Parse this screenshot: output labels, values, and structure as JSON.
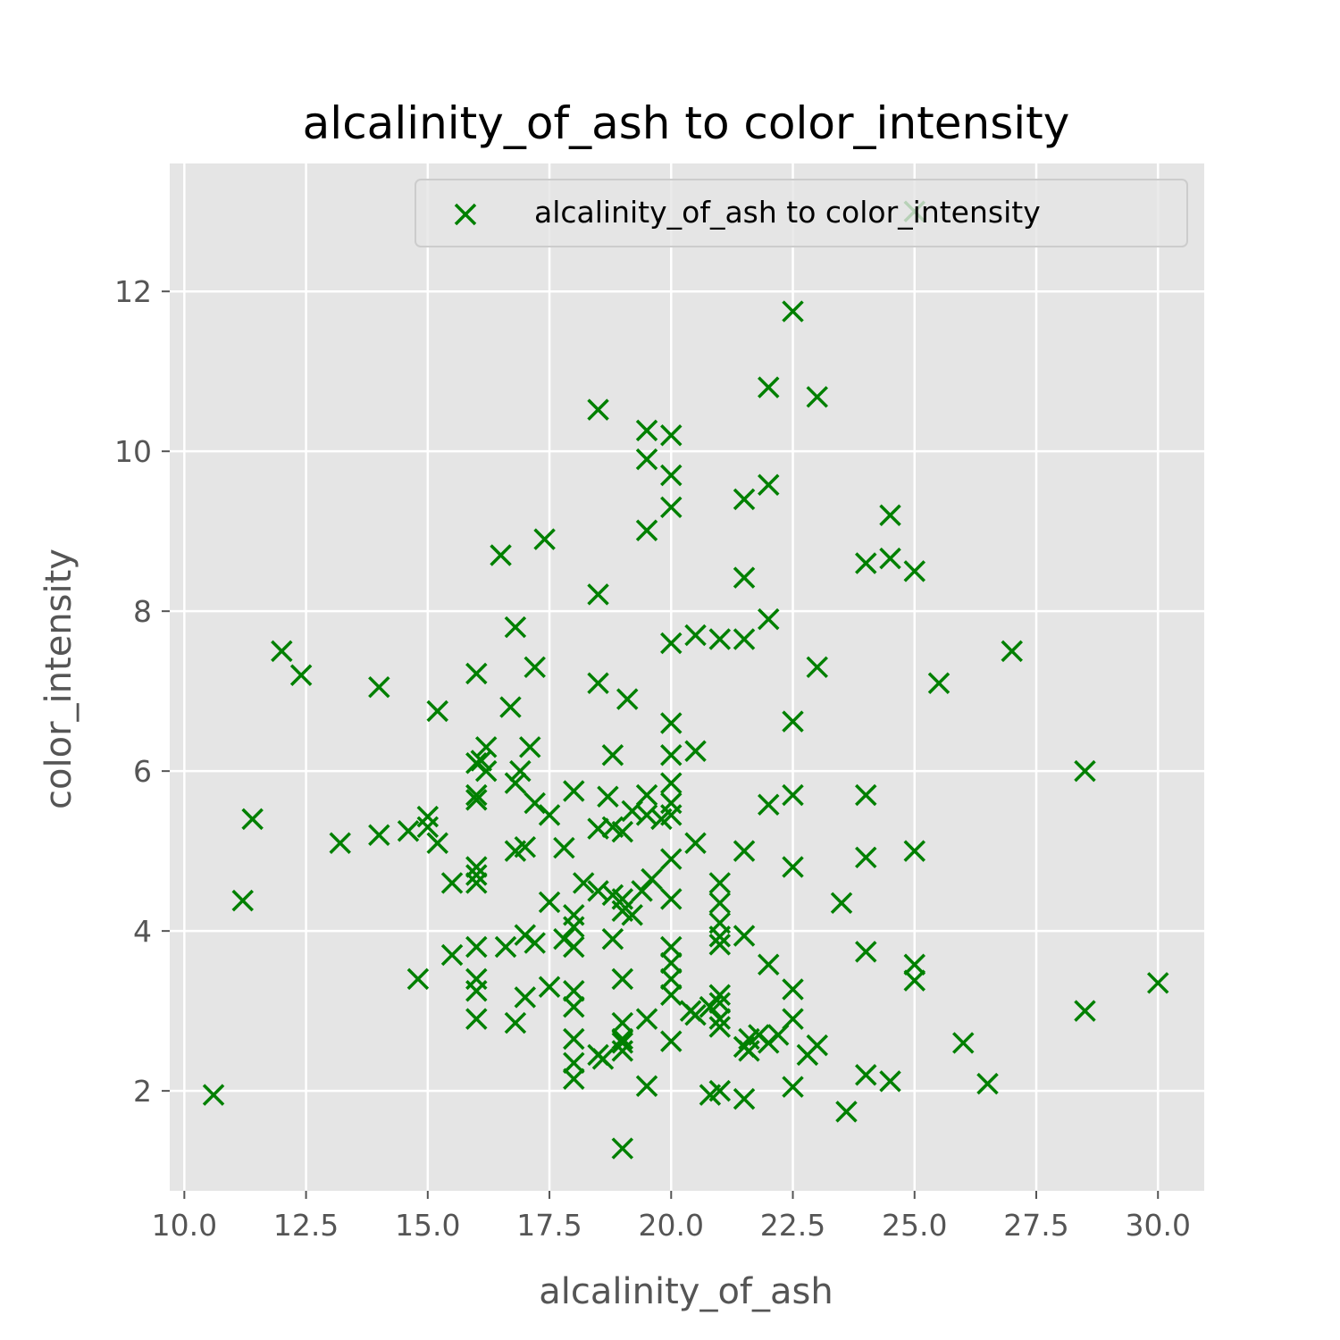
{
  "chart_data": {
    "type": "scatter",
    "title": "alcalinity_of_ash to color_intensity",
    "xlabel": "alcalinity_of_ash",
    "ylabel": "color_intensity",
    "xlim": [
      9.7,
      30.95
    ],
    "ylim": [
      0.75,
      13.6
    ],
    "xticks": [
      "10.0",
      "12.5",
      "15.0",
      "17.5",
      "20.0",
      "22.5",
      "25.0",
      "27.5",
      "30.0"
    ],
    "yticks": [
      "2",
      "4",
      "6",
      "8",
      "10",
      "12"
    ],
    "grid": true,
    "legend_position": "upper right",
    "color": "#008000",
    "marker": "x",
    "series": [
      {
        "name": "alcalinity_of_ash to color_intensity",
        "points": [
          [
            10.6,
            1.95
          ],
          [
            11.2,
            4.38
          ],
          [
            11.4,
            5.4
          ],
          [
            12.0,
            7.5
          ],
          [
            12.4,
            7.2
          ],
          [
            13.2,
            5.1
          ],
          [
            14.0,
            7.05
          ],
          [
            14.0,
            5.2
          ],
          [
            14.6,
            5.25
          ],
          [
            14.8,
            3.4
          ],
          [
            15.0,
            5.3
          ],
          [
            15.0,
            5.43
          ],
          [
            15.2,
            6.75
          ],
          [
            15.2,
            5.1
          ],
          [
            15.5,
            4.6
          ],
          [
            15.5,
            3.7
          ],
          [
            16.0,
            7.22
          ],
          [
            16.0,
            6.1
          ],
          [
            16.0,
            5.64
          ],
          [
            16.0,
            5.7
          ],
          [
            16.0,
            4.8
          ],
          [
            16.0,
            4.7
          ],
          [
            16.0,
            4.6
          ],
          [
            16.0,
            3.8
          ],
          [
            16.0,
            3.4
          ],
          [
            16.0,
            3.25
          ],
          [
            16.0,
            2.9
          ],
          [
            16.1,
            6.13
          ],
          [
            16.2,
            6.3
          ],
          [
            16.2,
            6.0
          ],
          [
            16.5,
            8.7
          ],
          [
            16.6,
            3.8
          ],
          [
            16.8,
            7.8
          ],
          [
            16.7,
            6.8
          ],
          [
            16.8,
            5.85
          ],
          [
            16.8,
            5.0
          ],
          [
            16.8,
            2.85
          ],
          [
            16.9,
            6.0
          ],
          [
            17.0,
            5.05
          ],
          [
            17.0,
            3.95
          ],
          [
            17.0,
            3.17
          ],
          [
            17.2,
            7.3
          ],
          [
            17.1,
            6.3
          ],
          [
            17.2,
            5.6
          ],
          [
            17.2,
            3.85
          ],
          [
            17.4,
            8.9
          ],
          [
            17.5,
            5.45
          ],
          [
            17.5,
            4.36
          ],
          [
            17.5,
            3.3
          ],
          [
            17.8,
            5.04
          ],
          [
            17.8,
            3.9
          ],
          [
            18.0,
            5.75
          ],
          [
            18.0,
            4.2
          ],
          [
            18.0,
            4.05
          ],
          [
            18.0,
            3.8
          ],
          [
            18.0,
            3.25
          ],
          [
            18.0,
            3.05
          ],
          [
            18.0,
            2.65
          ],
          [
            18.0,
            2.35
          ],
          [
            18.0,
            2.15
          ],
          [
            18.2,
            4.6
          ],
          [
            18.5,
            10.52
          ],
          [
            18.5,
            8.21
          ],
          [
            18.5,
            7.1
          ],
          [
            18.5,
            5.28
          ],
          [
            18.5,
            4.5
          ],
          [
            18.5,
            2.45
          ],
          [
            18.6,
            2.4
          ],
          [
            18.7,
            5.68
          ],
          [
            18.8,
            6.2
          ],
          [
            18.8,
            4.45
          ],
          [
            18.8,
            3.9
          ],
          [
            18.8,
            5.3
          ],
          [
            19.0,
            4.25
          ],
          [
            19.0,
            5.24
          ],
          [
            19.0,
            4.4
          ],
          [
            19.0,
            3.4
          ],
          [
            19.0,
            2.85
          ],
          [
            19.0,
            2.65
          ],
          [
            19.0,
            2.6
          ],
          [
            19.0,
            2.5
          ],
          [
            19.0,
            1.28
          ],
          [
            19.1,
            6.9
          ],
          [
            19.2,
            5.5
          ],
          [
            19.2,
            4.2
          ],
          [
            19.4,
            4.5
          ],
          [
            19.5,
            10.26
          ],
          [
            19.5,
            9.9
          ],
          [
            19.5,
            9.01
          ],
          [
            19.5,
            5.7
          ],
          [
            19.5,
            5.45
          ],
          [
            19.5,
            2.9
          ],
          [
            19.5,
            2.06
          ],
          [
            19.6,
            4.65
          ],
          [
            19.8,
            5.4
          ],
          [
            20.0,
            10.2
          ],
          [
            20.0,
            9.7
          ],
          [
            20.0,
            9.3
          ],
          [
            20.0,
            7.6
          ],
          [
            20.0,
            6.6
          ],
          [
            20.0,
            6.2
          ],
          [
            20.0,
            5.85
          ],
          [
            20.0,
            5.6
          ],
          [
            20.0,
            5.45
          ],
          [
            20.0,
            4.9
          ],
          [
            20.0,
            4.4
          ],
          [
            20.0,
            3.8
          ],
          [
            20.0,
            3.6
          ],
          [
            20.0,
            3.4
          ],
          [
            20.0,
            3.2
          ],
          [
            20.0,
            2.62
          ],
          [
            20.4,
            3.0
          ],
          [
            20.5,
            7.7
          ],
          [
            20.5,
            6.25
          ],
          [
            20.5,
            5.1
          ],
          [
            20.5,
            2.95
          ],
          [
            20.8,
            3.05
          ],
          [
            20.8,
            1.95
          ],
          [
            21.0,
            7.65
          ],
          [
            21.0,
            4.6
          ],
          [
            21.0,
            4.35
          ],
          [
            21.0,
            4.1
          ],
          [
            21.0,
            3.93
          ],
          [
            21.0,
            3.83
          ],
          [
            21.0,
            3.2
          ],
          [
            21.0,
            3.1
          ],
          [
            21.0,
            2.9
          ],
          [
            21.0,
            2.8
          ],
          [
            21.0,
            2.0
          ],
          [
            21.5,
            9.4
          ],
          [
            21.5,
            8.42
          ],
          [
            21.5,
            7.65
          ],
          [
            21.5,
            5.0
          ],
          [
            21.5,
            3.94
          ],
          [
            21.5,
            2.55
          ],
          [
            21.5,
            1.9
          ],
          [
            21.6,
            2.65
          ],
          [
            21.6,
            2.5
          ],
          [
            21.8,
            2.7
          ],
          [
            22.0,
            10.8
          ],
          [
            22.0,
            9.58
          ],
          [
            22.0,
            7.9
          ],
          [
            22.0,
            5.58
          ],
          [
            22.0,
            3.58
          ],
          [
            22.0,
            2.6
          ],
          [
            22.2,
            2.7
          ],
          [
            22.5,
            11.75
          ],
          [
            22.5,
            6.62
          ],
          [
            22.5,
            5.7
          ],
          [
            22.5,
            4.8
          ],
          [
            22.5,
            3.27
          ],
          [
            22.5,
            2.9
          ],
          [
            22.5,
            2.05
          ],
          [
            22.8,
            2.45
          ],
          [
            23.0,
            10.68
          ],
          [
            23.0,
            7.3
          ],
          [
            23.0,
            2.57
          ],
          [
            23.5,
            4.35
          ],
          [
            23.6,
            1.74
          ],
          [
            24.0,
            8.6
          ],
          [
            24.0,
            5.7
          ],
          [
            24.0,
            4.92
          ],
          [
            24.0,
            3.74
          ],
          [
            24.0,
            2.2
          ],
          [
            24.5,
            9.2
          ],
          [
            24.5,
            8.66
          ],
          [
            24.5,
            2.12
          ],
          [
            25.0,
            8.5
          ],
          [
            25.0,
            13.0
          ],
          [
            25.0,
            5.0
          ],
          [
            25.0,
            3.58
          ],
          [
            25.0,
            3.38
          ],
          [
            25.5,
            7.1
          ],
          [
            26.0,
            2.6
          ],
          [
            26.5,
            2.09
          ],
          [
            27.0,
            7.5
          ],
          [
            28.5,
            6.0
          ],
          [
            28.5,
            3.0
          ],
          [
            30.0,
            3.35
          ]
        ]
      }
    ]
  }
}
